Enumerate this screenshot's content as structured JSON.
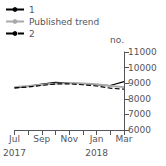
{
  "chart_data": {
    "type": "line",
    "ylabel": "no.",
    "categories": [
      "Jul",
      null,
      "Sep",
      null,
      "Nov",
      null,
      "Jan",
      null,
      "Mar"
    ],
    "series": [
      {
        "name": "1",
        "color": "#000000",
        "line_style": "solid",
        "values": [
          8700,
          8800,
          8950,
          9050,
          9000,
          8980,
          8900,
          8850,
          9100
        ]
      },
      {
        "name": "Published trend",
        "color": "#aaaaaa",
        "line_style": "solid",
        "values": [
          8750,
          8820,
          8900,
          8970,
          9000,
          8980,
          8940,
          8820,
          8750
        ]
      },
      {
        "name": "2",
        "color": "#000000",
        "line_style": "dashed",
        "values": [
          8700,
          8760,
          8860,
          8950,
          8960,
          8900,
          8820,
          8680,
          8620
        ]
      }
    ],
    "annotations": [
      {
        "text": "2017",
        "category": 0
      },
      {
        "text": "2018",
        "category": 6
      }
    ],
    "ylim": [
      6000,
      11000
    ],
    "yticks": [
      6000,
      7000,
      8000,
      9000,
      10000,
      11000
    ],
    "grid": false,
    "legend": "upper left"
  }
}
